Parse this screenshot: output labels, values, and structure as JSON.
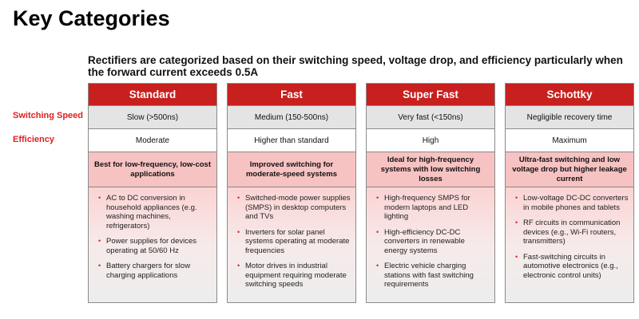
{
  "title": "Key Categories",
  "subtitle": "Rectifiers are categorized based on their switching speed, voltage drop, and efficiency particularly when the forward current exceeds 0.5A",
  "row_labels": {
    "speed": "Switching Speed",
    "efficiency": "Efficiency"
  },
  "colors": {
    "header": "#c8201e",
    "label": "#e02020",
    "summary": "#f7c2c2"
  },
  "columns": [
    {
      "name": "Standard",
      "speed": "Slow (>500ns)",
      "efficiency": "Moderate",
      "summary": "Best for low-frequency, low-cost applications",
      "applications": [
        "AC to DC conversion in household appliances (e.g. washing machines, refrigerators)",
        "Power supplies for devices operating at 50/60 Hz",
        "Battery chargers for slow charging applications"
      ]
    },
    {
      "name": "Fast",
      "speed": "Medium (150-500ns)",
      "efficiency": "Higher than standard",
      "summary": "Improved switching for moderate-speed systems",
      "applications": [
        "Switched-mode power supplies (SMPS) in desktop computers and TVs",
        "Inverters for solar panel systems operating at moderate frequencies",
        "Motor drives in industrial equipment requiring moderate switching speeds"
      ]
    },
    {
      "name": "Super Fast",
      "speed": "Very fast (<150ns)",
      "efficiency": "High",
      "summary": "Ideal for high-frequency systems with low switching losses",
      "applications": [
        "High-frequency SMPS for modern laptops and LED lighting",
        "High-efficiency DC-DC converters in renewable energy systems",
        "Electric vehicle charging stations with fast switching requirements"
      ]
    },
    {
      "name": "Schottky",
      "speed": "Negligible recovery time",
      "efficiency": "Maximum",
      "summary": "Ultra-fast switching and low voltage drop but higher leakage current",
      "applications": [
        "Low-voltage DC-DC converters in mobile phones and tablets",
        "RF circuits in communication devices (e.g., Wi-Fi routers, transmitters)",
        "Fast-switching circuits in automotive electronics (e.g., electronic control units)"
      ]
    }
  ]
}
